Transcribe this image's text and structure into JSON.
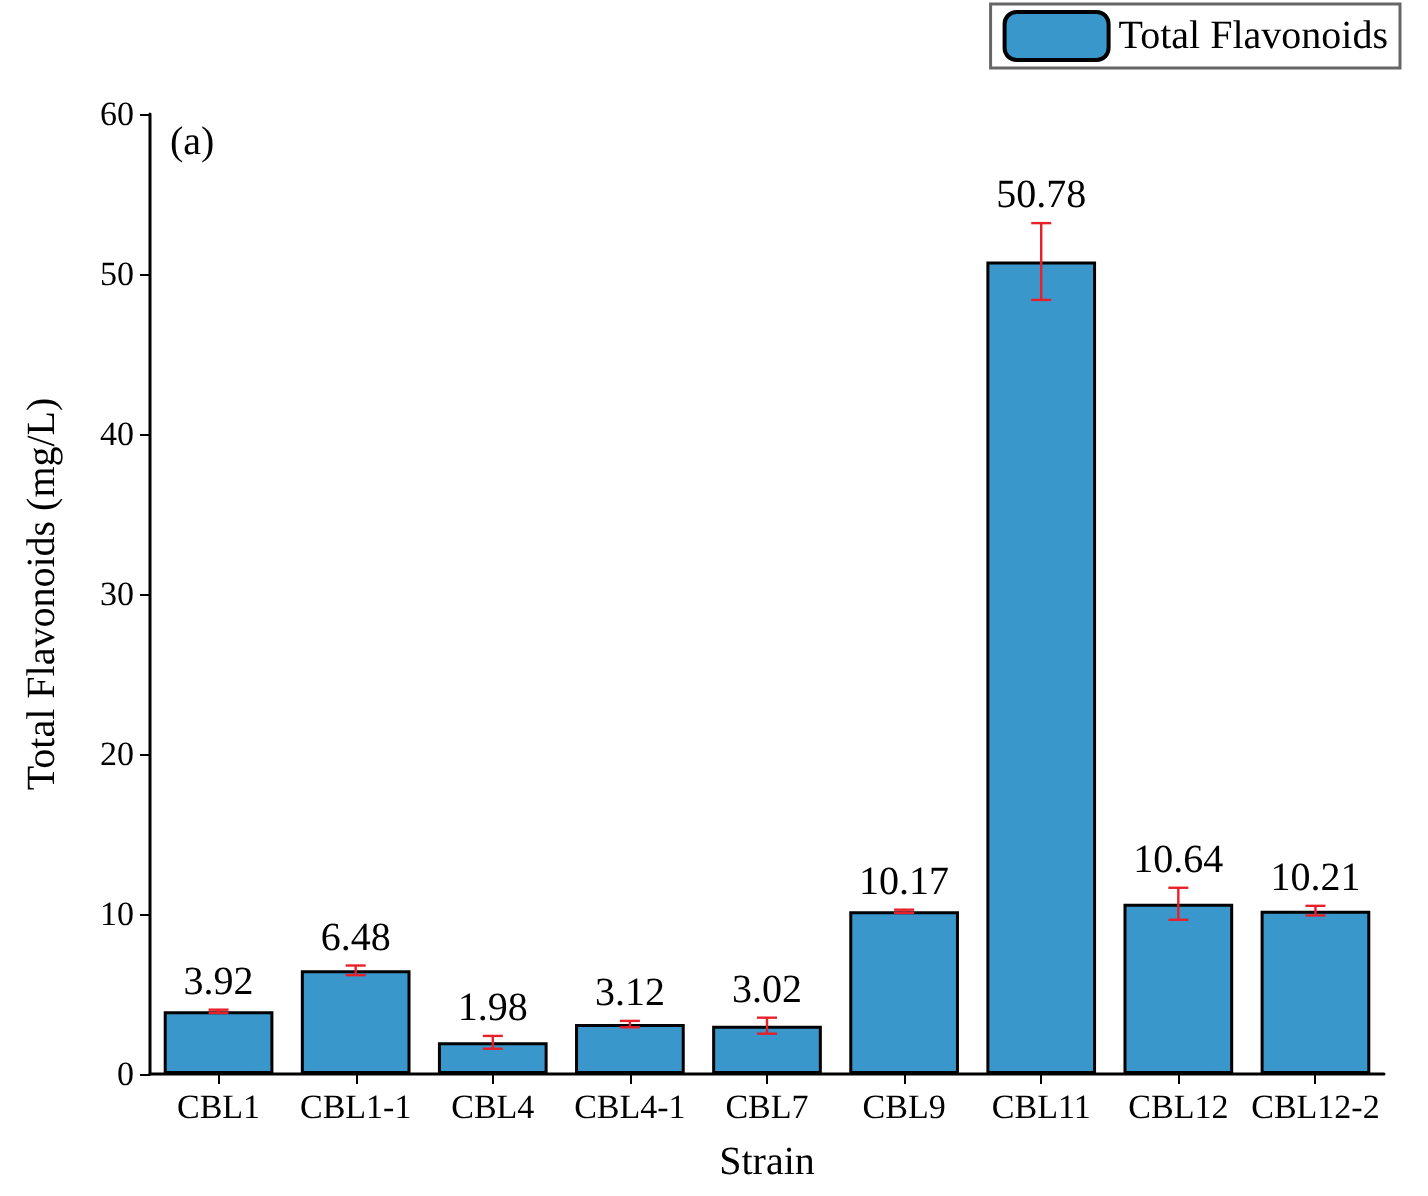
{
  "chart_data": {
    "type": "bar",
    "xlabel": "Strain",
    "ylabel": "Total Flavonoids (mg/L)",
    "categories": [
      "CBL1",
      "CBL1-1",
      "CBL4",
      "CBL4-1",
      "CBL7",
      "CBL9",
      "CBL11",
      "CBL12",
      "CBL12-2"
    ],
    "series": [
      {
        "name": "Total Flavonoids",
        "color": "#3a97cb",
        "values": [
          3.92,
          6.48,
          1.98,
          3.12,
          3.02,
          10.17,
          50.78,
          10.64,
          10.21
        ],
        "errors": [
          0.1,
          0.3,
          0.4,
          0.2,
          0.5,
          0.1,
          2.4,
          1.0,
          0.3
        ]
      }
    ],
    "ylim": [
      0,
      60
    ],
    "yticks": [
      0,
      10,
      20,
      30,
      40,
      50,
      60
    ],
    "data_labels": true,
    "legend": "top right",
    "grid": false,
    "annotations": [
      "(a)"
    ]
  }
}
